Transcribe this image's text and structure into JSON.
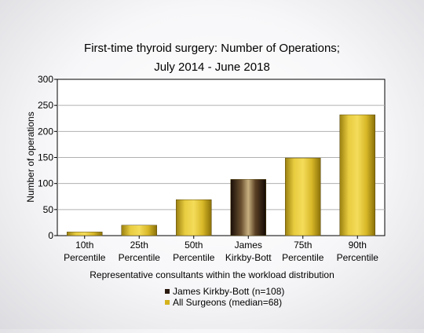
{
  "chart_data": {
    "type": "bar",
    "title": [
      "First-time thyroid surgery: Number of Operations;",
      "July 2014 - June 2018"
    ],
    "xlabel": "Representative consultants within the workload distribution",
    "ylabel": "Number of operations",
    "ylim": [
      0,
      300
    ],
    "yticks": [
      0,
      50,
      100,
      150,
      200,
      250,
      300
    ],
    "grid": true,
    "categories": [
      [
        "10th",
        "Percentile"
      ],
      [
        "25th",
        "Percentile"
      ],
      [
        "50th",
        "Percentile"
      ],
      [
        "James",
        "Kirkby-Bott"
      ],
      [
        "75th",
        "Percentile"
      ],
      [
        "90th",
        "Percentile"
      ]
    ],
    "values": [
      7,
      20,
      69,
      108,
      149,
      232
    ],
    "bar_series": [
      "all",
      "all",
      "all",
      "consultant",
      "all",
      "all"
    ],
    "series": [
      {
        "key": "consultant",
        "name": "James Kirkby-Bott (n=108)",
        "color": "#2a1a10"
      },
      {
        "key": "all",
        "name": "All Surgeons (median=68)",
        "color": "#d4b21c"
      }
    ],
    "legend_position": "bottom-center"
  }
}
